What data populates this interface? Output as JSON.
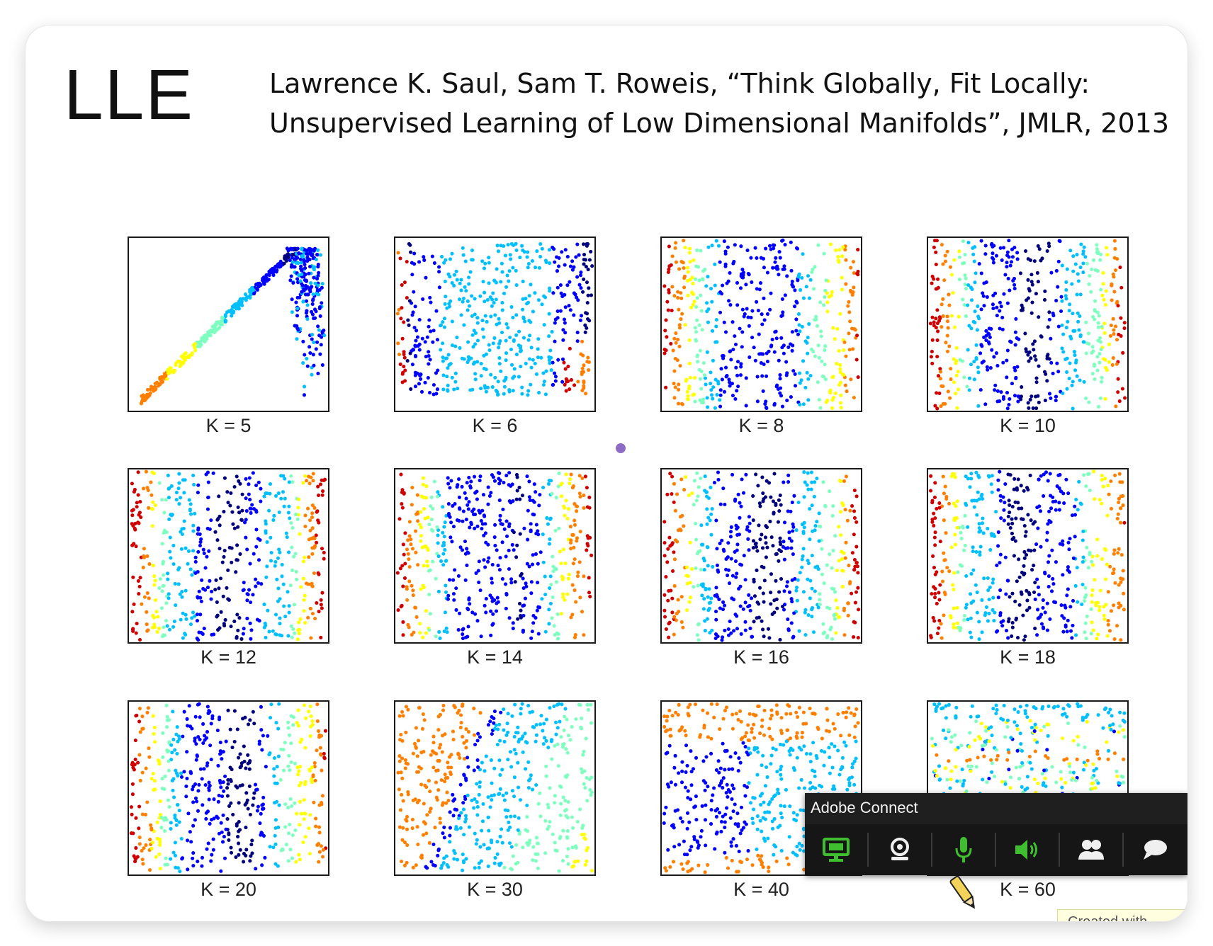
{
  "slide": {
    "title": "LLE",
    "citation_line1": "Lawrence K. Saul, Sam T. Roweis, “Think Globally, Fit Locally:",
    "citation_line2": "Unsupervised Learning of Low Dimensional Manifolds”, JMLR, 2013"
  },
  "chart_data": {
    "type": "scatter",
    "colormap": [
      "#00007f",
      "#0000ff",
      "#00bfff",
      "#7fffbf",
      "#ffff00",
      "#ff7f00",
      "#d00000"
    ],
    "panels": [
      {
        "label": "K = 5"
      },
      {
        "label": "K = 6"
      },
      {
        "label": "K = 8"
      },
      {
        "label": "K = 10"
      },
      {
        "label": "K = 12"
      },
      {
        "label": "K = 14"
      },
      {
        "label": "K = 16"
      },
      {
        "label": "K = 18"
      },
      {
        "label": "K = 20"
      },
      {
        "label": "K = 30"
      },
      {
        "label": "K = 40"
      },
      {
        "label": "K = 60"
      }
    ]
  },
  "adobe_connect": {
    "title": "Adobe Connect",
    "buttons": [
      {
        "name": "share-screen",
        "icon": "monitor-icon",
        "color": "#3fbf2f"
      },
      {
        "name": "camera",
        "icon": "webcam-icon",
        "color": "#f0f0f0"
      },
      {
        "name": "microphone",
        "icon": "microphone-icon",
        "color": "#3fbf2f"
      },
      {
        "name": "speaker",
        "icon": "speaker-icon",
        "color": "#3fbf2f"
      },
      {
        "name": "attendees",
        "icon": "users-icon",
        "color": "#f0f0f0"
      },
      {
        "name": "chat",
        "icon": "chat-icon",
        "color": "#f0f0f0"
      }
    ]
  },
  "watermark": {
    "text": "Created with"
  }
}
